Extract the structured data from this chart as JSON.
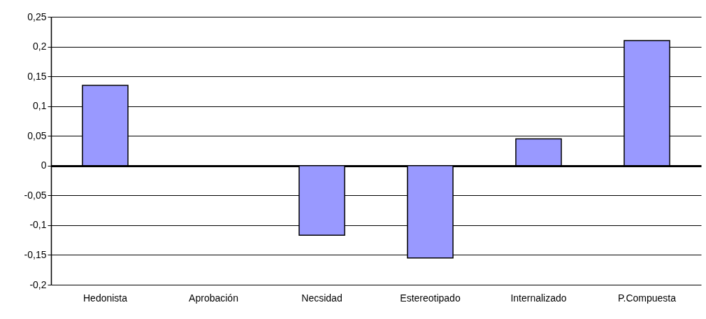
{
  "chart_data": {
    "type": "bar",
    "categories": [
      "Hedonista",
      "Aprobación",
      "Necsidad",
      "Estereotipado",
      "Internalizado",
      "P.Compuesta"
    ],
    "series": [
      {
        "color": "#9999ff",
        "values": [
          0.135,
          null,
          -0.117,
          -0.155,
          0.045,
          0.21
        ]
      }
    ],
    "ylim": [
      -0.2,
      0.25
    ],
    "yticks": [
      {
        "value": -0.2,
        "label": "-0,2"
      },
      {
        "value": -0.15,
        "label": "-0,15"
      },
      {
        "value": -0.1,
        "label": "-0,1"
      },
      {
        "value": -0.05,
        "label": "-0,05"
      },
      0,
      {
        "value": 0.05,
        "label": "0,05"
      },
      {
        "value": 0.1,
        "label": "0,1"
      },
      {
        "value": 0.15,
        "label": "0,15"
      },
      {
        "value": 0.2,
        "label": "0,2"
      },
      {
        "value": 0.25,
        "label": "0,25"
      }
    ],
    "grid": "y",
    "legend": false
  }
}
